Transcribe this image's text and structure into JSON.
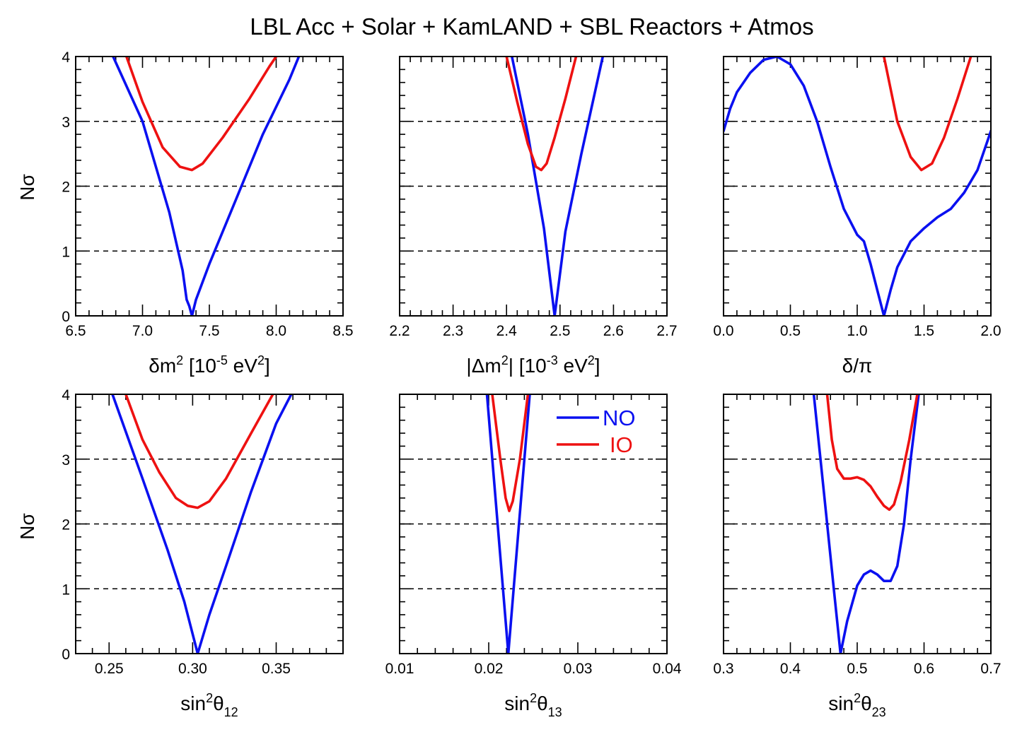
{
  "figure": {
    "title": "LBL Acc + Solar + KamLAND + SBL Reactors + Atmos",
    "ylabel": "Nσ",
    "colors": {
      "NO": "#0a10f0",
      "IO": "#ee1111"
    },
    "legend": {
      "placement": "upper-right of panel 5",
      "entries": [
        "NO",
        "IO"
      ]
    }
  },
  "chart_data": [
    {
      "type": "line",
      "xlabel": {
        "main": "δm",
        "sup1": "2",
        "mid": " [10",
        "sup2": "-5",
        "end": " eV",
        "sup3": "2",
        "close": "]"
      },
      "xlim": [
        6.5,
        8.5
      ],
      "ylim": [
        0,
        4
      ],
      "xticks": [
        "6.5",
        "7.0",
        "7.5",
        "8.0",
        "8.5"
      ],
      "yticks": [
        "0",
        "1",
        "2",
        "3",
        "4"
      ],
      "grid_y": [
        1,
        2,
        3
      ],
      "series": [
        {
          "name": "NO",
          "x": [
            6.78,
            7.0,
            7.2,
            7.3,
            7.33,
            7.35,
            7.37,
            7.4,
            7.5,
            7.7,
            7.9,
            8.1,
            8.17
          ],
          "y": [
            4.0,
            3.0,
            1.6,
            0.7,
            0.25,
            0.15,
            0.0,
            0.25,
            0.8,
            1.8,
            2.8,
            3.65,
            4.0
          ]
        },
        {
          "name": "IO",
          "x": [
            6.88,
            7.0,
            7.15,
            7.28,
            7.37,
            7.45,
            7.6,
            7.8,
            7.95,
            8.0
          ],
          "y": [
            4.0,
            3.3,
            2.6,
            2.3,
            2.25,
            2.35,
            2.75,
            3.35,
            3.85,
            4.0
          ]
        }
      ]
    },
    {
      "type": "line",
      "xlabel": {
        "main": "|Δm",
        "sup1": "2",
        "mid": "| [10",
        "sup2": "-3",
        "end": " eV",
        "sup3": "2",
        "close": "]"
      },
      "xlim": [
        2.2,
        2.7
      ],
      "ylim": [
        0,
        4
      ],
      "xticks": [
        "2.2",
        "2.3",
        "2.4",
        "2.5",
        "2.6",
        "2.7"
      ],
      "yticks": [],
      "grid_y": [
        1,
        2,
        3
      ],
      "series": [
        {
          "name": "NO",
          "x": [
            2.41,
            2.44,
            2.47,
            2.49,
            2.51,
            2.54,
            2.58
          ],
          "y": [
            4.0,
            2.8,
            1.35,
            0.0,
            1.3,
            2.5,
            4.0
          ]
        },
        {
          "name": "IO",
          "x": [
            2.4,
            2.42,
            2.44,
            2.455,
            2.465,
            2.475,
            2.49,
            2.51,
            2.53
          ],
          "y": [
            4.0,
            3.3,
            2.65,
            2.3,
            2.25,
            2.35,
            2.75,
            3.35,
            4.0
          ]
        }
      ]
    },
    {
      "type": "line",
      "xlabel": {
        "main": "δ/π",
        "sup1": "",
        "mid": "",
        "sup2": "",
        "end": "",
        "sup3": "",
        "close": ""
      },
      "xlim": [
        0.0,
        2.0
      ],
      "ylim": [
        0,
        4
      ],
      "xticks": [
        "0.0",
        "0.5",
        "1.0",
        "1.5",
        "2.0"
      ],
      "yticks": [],
      "grid_y": [
        1,
        2,
        3
      ],
      "series": [
        {
          "name": "NO",
          "x": [
            0.0,
            0.05,
            0.1,
            0.2,
            0.3,
            0.4,
            0.5,
            0.6,
            0.7,
            0.8,
            0.9,
            1.0,
            1.05,
            1.1,
            1.15,
            1.2,
            1.25,
            1.3,
            1.4,
            1.5,
            1.6,
            1.7,
            1.8,
            1.9,
            2.0
          ],
          "y": [
            2.85,
            3.2,
            3.45,
            3.75,
            3.95,
            4.0,
            3.88,
            3.55,
            3.0,
            2.3,
            1.65,
            1.25,
            1.15,
            0.8,
            0.4,
            0.0,
            0.4,
            0.75,
            1.15,
            1.35,
            1.52,
            1.65,
            1.9,
            2.25,
            2.85
          ]
        },
        {
          "name": "IO",
          "x": [
            1.2,
            1.3,
            1.4,
            1.48,
            1.56,
            1.65,
            1.75,
            1.85
          ],
          "y": [
            4.0,
            3.0,
            2.45,
            2.25,
            2.35,
            2.75,
            3.35,
            4.0
          ]
        }
      ]
    },
    {
      "type": "line",
      "xlabel": {
        "main": "sin",
        "sup1": "2",
        "mid": "θ",
        "sub": "12"
      },
      "xlim": [
        0.23,
        0.39
      ],
      "ylim": [
        0,
        4
      ],
      "xticks": [
        "0.25",
        "0.30",
        "0.35"
      ],
      "xtick_values": [
        0.25,
        0.3,
        0.35
      ],
      "yticks": [
        "0",
        "1",
        "2",
        "3",
        "4"
      ],
      "grid_y": [
        1,
        2,
        3
      ],
      "series": [
        {
          "name": "NO",
          "x": [
            0.252,
            0.27,
            0.285,
            0.295,
            0.303,
            0.31,
            0.32,
            0.335,
            0.35,
            0.359
          ],
          "y": [
            4.0,
            2.7,
            1.6,
            0.8,
            0.0,
            0.6,
            1.35,
            2.5,
            3.55,
            4.0
          ]
        },
        {
          "name": "IO",
          "x": [
            0.26,
            0.27,
            0.28,
            0.29,
            0.297,
            0.303,
            0.31,
            0.32,
            0.335,
            0.348
          ],
          "y": [
            4.0,
            3.3,
            2.8,
            2.4,
            2.28,
            2.25,
            2.35,
            2.7,
            3.4,
            4.0
          ]
        }
      ]
    },
    {
      "type": "line",
      "xlabel": {
        "main": "sin",
        "sup1": "2",
        "mid": "θ",
        "sub": "13"
      },
      "xlim": [
        0.01,
        0.04
      ],
      "ylim": [
        0,
        4
      ],
      "xticks": [
        "0.01",
        "0.02",
        "0.03",
        "0.04"
      ],
      "xtick_values": [
        0.01,
        0.02,
        0.03,
        0.04
      ],
      "yticks": [],
      "grid_y": [
        1,
        2,
        3
      ],
      "series": [
        {
          "name": "NO",
          "x": [
            0.0198,
            0.021,
            0.0222,
            0.0234,
            0.0246
          ],
          "y": [
            4.0,
            2.0,
            0.0,
            2.0,
            4.0
          ]
        },
        {
          "name": "IO",
          "x": [
            0.0204,
            0.0213,
            0.0219,
            0.0223,
            0.0227,
            0.0235,
            0.0244
          ],
          "y": [
            4.0,
            3.0,
            2.4,
            2.2,
            2.35,
            3.0,
            4.0
          ]
        }
      ]
    },
    {
      "type": "line",
      "xlabel": {
        "main": "sin",
        "sup1": "2",
        "mid": "θ",
        "sub": "23"
      },
      "xlim": [
        0.3,
        0.7
      ],
      "ylim": [
        0,
        4
      ],
      "xticks": [
        "0.3",
        "0.4",
        "0.5",
        "0.6",
        "0.7"
      ],
      "xtick_values": [
        0.3,
        0.4,
        0.5,
        0.6,
        0.7
      ],
      "yticks": [],
      "grid_y": [
        1,
        2,
        3
      ],
      "series": [
        {
          "name": "NO",
          "x": [
            0.435,
            0.45,
            0.465,
            0.475,
            0.485,
            0.5,
            0.51,
            0.52,
            0.53,
            0.54,
            0.55,
            0.56,
            0.57,
            0.58,
            0.592
          ],
          "y": [
            4.0,
            2.5,
            1.0,
            0.0,
            0.5,
            1.05,
            1.22,
            1.28,
            1.22,
            1.12,
            1.12,
            1.35,
            2.0,
            3.0,
            4.0
          ]
        },
        {
          "name": "IO",
          "x": [
            0.455,
            0.462,
            0.47,
            0.48,
            0.49,
            0.5,
            0.51,
            0.52,
            0.53,
            0.54,
            0.548,
            0.555,
            0.565,
            0.578,
            0.59
          ],
          "y": [
            4.0,
            3.3,
            2.85,
            2.7,
            2.7,
            2.72,
            2.68,
            2.58,
            2.42,
            2.28,
            2.22,
            2.3,
            2.65,
            3.3,
            4.0
          ]
        }
      ]
    }
  ]
}
